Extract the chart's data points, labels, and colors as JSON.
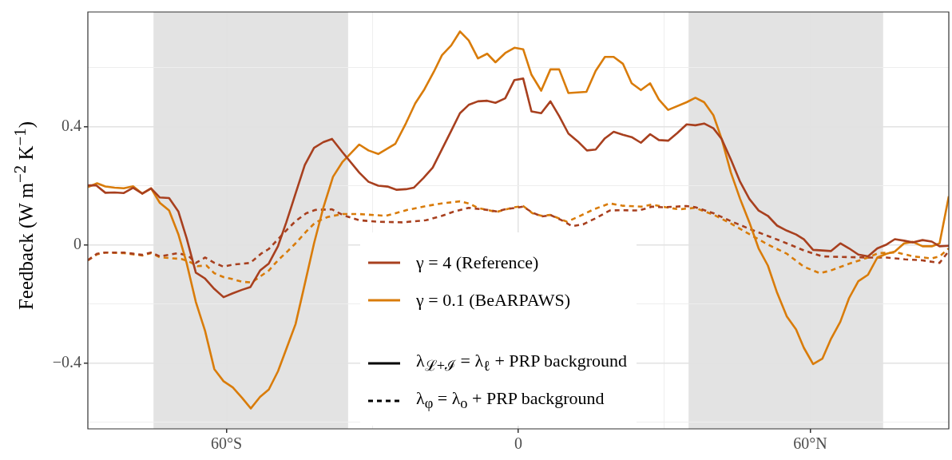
{
  "chart_data": {
    "type": "line",
    "ylabel": "Feedback (W m$^{−2}$ K$^{−1}$)",
    "xlim": [
      -88.5,
      88.5
    ],
    "xticks": [
      {
        "value": -60,
        "label": "60°S"
      },
      {
        "value": -30,
        "label": null
      },
      0,
      {
        "value": 30,
        "label": null
      },
      {
        "value": 60,
        "label": "60°N"
      }
    ],
    "ylim": [
      -0.622,
      0.787
    ],
    "yticks": [
      {
        "value": -0.6,
        "label": null
      },
      {
        "value": -0.4,
        "label": "−0.4"
      },
      {
        "value": -0.2,
        "label": null
      },
      0,
      {
        "value": 0.2,
        "label": null
      },
      0.4,
      {
        "value": 0.6,
        "label": null
      }
    ],
    "grid": true,
    "legend": "bottom",
    "bands": [
      {
        "axis": "x",
        "from": -75,
        "to": -35,
        "color": "#e3e3e3"
      },
      {
        "axis": "x",
        "from": 35,
        "to": 75,
        "color": "#e3e3e3"
      }
    ],
    "annotations": [
      "λ$_{ℒ+ℐ}$ = λ$_{ℓ}$ + PRP background",
      "λ$_{φ}$ = λ$_{o}$ + PRP background"
    ],
    "series": [
      {
        "name": "γ = 4 (Reference)",
        "color": "#a8401f",
        "line_style": "solid",
        "x": [
          -88.5,
          -86.8,
          -84.9,
          -83.0,
          -81.1,
          -79.2,
          -77.3,
          -75.5,
          -73.7,
          -71.8,
          -69.9,
          -68.2,
          -66.3,
          -64.4,
          -62.5,
          -60.6,
          -58.7,
          -56.8,
          -55.1,
          -53.1,
          -51.3,
          -49.4,
          -47.7,
          -45.8,
          -43.9,
          -42.0,
          -40.1,
          -38.3,
          -36.2,
          -32.7,
          -30.8,
          -28.8,
          -26.9,
          -25.0,
          -23.1,
          -21.5,
          -19.5,
          -17.6,
          -15.7,
          -13.8,
          -12.0,
          -10.2,
          -8.3,
          -6.4,
          -4.7,
          -2.7,
          -0.8,
          1.0,
          2.7,
          4.7,
          6.6,
          8.4,
          10.3,
          12.2,
          14.1,
          15.9,
          17.8,
          19.6,
          21.5,
          23.3,
          25.2,
          27.1,
          28.9,
          30.8,
          32.7,
          34.6,
          36.4,
          38.2,
          40.1,
          41.8,
          43.7,
          45.6,
          47.5,
          49.4,
          51.3,
          53.2,
          55.2,
          57.1,
          58.7,
          60.6,
          62.5,
          64.3,
          66.2,
          68.0,
          69.9,
          71.9,
          73.8,
          75.7,
          77.4,
          79.3,
          81.1,
          83.1,
          85.0,
          86.6,
          88.5
        ],
        "values": [
          0.201,
          0.201,
          0.176,
          0.177,
          0.175,
          0.193,
          0.173,
          0.191,
          0.16,
          0.158,
          0.113,
          0.023,
          -0.094,
          -0.114,
          -0.149,
          -0.177,
          -0.164,
          -0.152,
          -0.143,
          -0.087,
          -0.063,
          -0.004,
          0.076,
          0.173,
          0.27,
          0.328,
          0.347,
          0.358,
          0.314,
          0.244,
          0.213,
          0.2,
          0.197,
          0.186,
          0.188,
          0.193,
          0.226,
          0.261,
          0.323,
          0.385,
          0.445,
          0.473,
          0.485,
          0.487,
          0.48,
          0.495,
          0.557,
          0.562,
          0.451,
          0.445,
          0.485,
          0.435,
          0.376,
          0.35,
          0.319,
          0.322,
          0.36,
          0.382,
          0.372,
          0.364,
          0.345,
          0.374,
          0.354,
          0.352,
          0.378,
          0.407,
          0.404,
          0.41,
          0.394,
          0.358,
          0.288,
          0.213,
          0.155,
          0.116,
          0.098,
          0.065,
          0.048,
          0.035,
          0.019,
          -0.017,
          -0.019,
          -0.021,
          0.005,
          -0.012,
          -0.033,
          -0.039,
          -0.012,
          0.001,
          0.019,
          0.014,
          0.008,
          0.016,
          0.011,
          -0.005,
          -0.003
        ]
      },
      {
        "name": "γ = 0.1 (BeARPAWS)",
        "color": "#d97c0a",
        "line_style": "solid",
        "x": [
          -88.5,
          -86.6,
          -84.9,
          -83.0,
          -81.1,
          -79.2,
          -77.3,
          -75.5,
          -73.7,
          -71.8,
          -69.9,
          -68.2,
          -66.3,
          -64.4,
          -62.5,
          -60.6,
          -58.7,
          -56.8,
          -55.0,
          -53.1,
          -51.3,
          -49.4,
          -47.7,
          -45.8,
          -44.2,
          -42.0,
          -40.1,
          -38.1,
          -36.2,
          -32.7,
          -30.8,
          -28.8,
          -25.3,
          -23.1,
          -21.2,
          -19.3,
          -17.4,
          -15.7,
          -13.8,
          -12.0,
          -10.2,
          -8.3,
          -6.4,
          -4.7,
          -2.7,
          -0.8,
          1.0,
          2.7,
          4.7,
          6.6,
          8.4,
          10.3,
          14.0,
          15.9,
          17.8,
          19.6,
          21.5,
          23.3,
          25.2,
          27.1,
          28.9,
          30.8,
          34.6,
          36.4,
          38.2,
          40.1,
          41.8,
          43.7,
          45.6,
          47.5,
          49.4,
          51.3,
          53.2,
          55.2,
          57.1,
          58.7,
          60.6,
          62.5,
          64.3,
          66.2,
          68.0,
          69.9,
          71.9,
          73.8,
          75.7,
          77.4,
          79.3,
          81.1,
          83.1,
          85.0,
          86.6,
          88.5
        ],
        "values": [
          0.195,
          0.208,
          0.197,
          0.193,
          0.191,
          0.198,
          0.173,
          0.191,
          0.142,
          0.116,
          0.036,
          -0.061,
          -0.193,
          -0.291,
          -0.42,
          -0.461,
          -0.482,
          -0.517,
          -0.553,
          -0.514,
          -0.489,
          -0.427,
          -0.352,
          -0.268,
          -0.154,
          0.005,
          0.125,
          0.23,
          0.279,
          0.339,
          0.319,
          0.307,
          0.341,
          0.411,
          0.478,
          0.526,
          0.584,
          0.641,
          0.674,
          0.721,
          0.691,
          0.63,
          0.646,
          0.617,
          0.648,
          0.666,
          0.661,
          0.575,
          0.521,
          0.593,
          0.593,
          0.513,
          0.517,
          0.588,
          0.635,
          0.635,
          0.612,
          0.546,
          0.523,
          0.546,
          0.491,
          0.456,
          0.482,
          0.497,
          0.482,
          0.438,
          0.358,
          0.244,
          0.155,
          0.076,
          -0.012,
          -0.07,
          -0.162,
          -0.242,
          -0.286,
          -0.348,
          -0.403,
          -0.385,
          -0.317,
          -0.26,
          -0.18,
          -0.123,
          -0.101,
          -0.043,
          -0.03,
          -0.023,
          0.005,
          0.01,
          -0.005,
          -0.005,
          0.005,
          0.164
        ]
      },
      {
        "color": "#a8401f",
        "line_style": "dashed",
        "x": [
          -88.5,
          -86.6,
          -84.9,
          -81.1,
          -77.3,
          -75.5,
          -73.7,
          -69.9,
          -67.7,
          -66.3,
          -64.4,
          -62.5,
          -60.6,
          -58.7,
          -55.1,
          -52.9,
          -51.3,
          -49.4,
          -47.4,
          -45.8,
          -43.6,
          -41.7,
          -38.3,
          -36.0,
          -32.7,
          -28.8,
          -23.9,
          -19.0,
          -15.7,
          -13.5,
          -10.2,
          -6.4,
          -4.5,
          -2.7,
          1.0,
          2.9,
          4.8,
          6.7,
          8.7,
          11.1,
          13.3,
          15.8,
          18.8,
          21.0,
          24.8,
          27.5,
          29.7,
          34.6,
          36.4,
          40.1,
          43.7,
          47.5,
          51.3,
          55.2,
          58.7,
          62.5,
          66.4,
          71.9,
          75.7,
          79.5,
          82.8,
          86.6,
          88.5
        ],
        "values": [
          -0.052,
          -0.03,
          -0.026,
          -0.026,
          -0.034,
          -0.026,
          -0.039,
          -0.028,
          -0.039,
          -0.061,
          -0.043,
          -0.061,
          -0.074,
          -0.067,
          -0.061,
          -0.03,
          -0.014,
          0.019,
          0.054,
          0.08,
          0.107,
          0.118,
          0.12,
          0.1,
          0.083,
          0.078,
          0.076,
          0.083,
          0.098,
          0.111,
          0.125,
          0.118,
          0.113,
          0.12,
          0.129,
          0.109,
          0.096,
          0.1,
          0.085,
          0.063,
          0.069,
          0.089,
          0.116,
          0.117,
          0.116,
          0.129,
          0.127,
          0.131,
          0.127,
          0.107,
          0.08,
          0.054,
          0.03,
          0.005,
          -0.019,
          -0.039,
          -0.041,
          -0.043,
          -0.043,
          -0.049,
          -0.052,
          -0.061,
          -0.021
        ]
      },
      {
        "color": "#d97c0a",
        "line_style": "dashed",
        "x": [
          -88.5,
          -86.6,
          -84.9,
          -81.1,
          -77.3,
          -75.5,
          -73.7,
          -69.3,
          -67.7,
          -66.0,
          -64.1,
          -62.5,
          -60.6,
          -58.7,
          -56.8,
          -54.8,
          -52.9,
          -51.3,
          -49.4,
          -47.4,
          -45.8,
          -43.6,
          -41.7,
          -39.2,
          -36.2,
          -32.7,
          -27.2,
          -22.8,
          -19.0,
          -15.7,
          -12.0,
          -10.2,
          -8.3,
          -4.5,
          -0.9,
          1.0,
          2.9,
          4.8,
          6.6,
          10.0,
          12.2,
          15.5,
          18.8,
          21.5,
          25.3,
          27.5,
          30.3,
          33.0,
          36.3,
          40.1,
          43.7,
          47.5,
          51.3,
          55.2,
          58.7,
          62.0,
          64.2,
          68.0,
          71.9,
          74.0,
          77.9,
          81.1,
          85.0,
          86.6,
          88.5
        ],
        "values": [
          -0.052,
          -0.032,
          -0.026,
          -0.028,
          -0.036,
          -0.028,
          -0.042,
          -0.048,
          -0.056,
          -0.072,
          -0.07,
          -0.096,
          -0.109,
          -0.116,
          -0.125,
          -0.127,
          -0.105,
          -0.087,
          -0.052,
          -0.021,
          0.005,
          0.045,
          0.076,
          0.094,
          0.104,
          0.104,
          0.098,
          0.118,
          0.131,
          0.14,
          0.147,
          0.14,
          0.125,
          0.111,
          0.127,
          0.131,
          0.107,
          0.098,
          0.101,
          0.078,
          0.094,
          0.12,
          0.14,
          0.132,
          0.129,
          0.136,
          0.127,
          0.12,
          0.125,
          0.102,
          0.072,
          0.036,
          0.001,
          -0.03,
          -0.074,
          -0.096,
          -0.087,
          -0.064,
          -0.043,
          -0.028,
          -0.026,
          -0.039,
          -0.046,
          -0.039,
          -0.012
        ]
      }
    ]
  }
}
